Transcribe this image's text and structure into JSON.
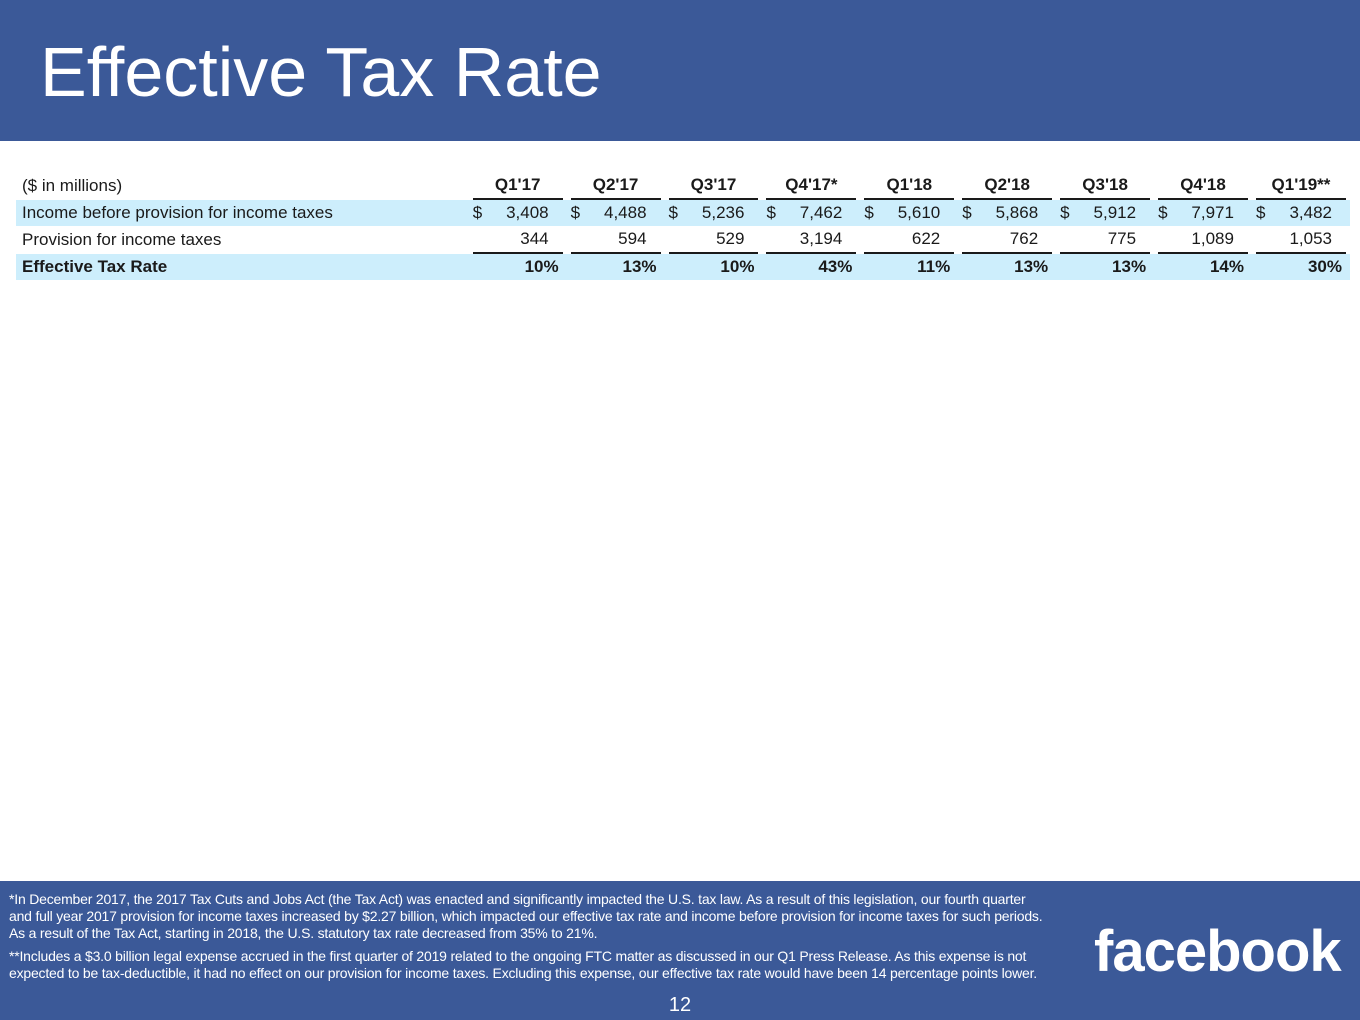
{
  "title": "Effective Tax Rate",
  "table": {
    "unit_label": "($ in millions)",
    "columns": [
      "Q1'17",
      "Q2'17",
      "Q3'17",
      "Q4'17*",
      "Q1'18",
      "Q2'18",
      "Q3'18",
      "Q4'18",
      "Q1'19**"
    ],
    "rows": [
      {
        "label": "Income before provision for income taxes",
        "currency": "$",
        "values": [
          "3,408",
          "4,488",
          "5,236",
          "7,462",
          "5,610",
          "5,868",
          "5,912",
          "7,971",
          "3,482"
        ]
      },
      {
        "label": "Provision for income taxes",
        "values": [
          "344",
          "594",
          "529",
          "3,194",
          "622",
          "762",
          "775",
          "1,089",
          "1,053"
        ]
      },
      {
        "label": "Effective Tax Rate",
        "values": [
          "10%",
          "13%",
          "10%",
          "43%",
          "11%",
          "13%",
          "13%",
          "14%",
          "30%"
        ]
      }
    ]
  },
  "footnotes": {
    "note1": "*In December 2017, the 2017 Tax Cuts and Jobs Act (the Tax Act) was enacted and significantly impacted the U.S. tax law. As a result of this legislation, our fourth quarter and full year 2017 provision for income taxes increased by $2.27 billion, which impacted our effective tax rate and income before provision for income taxes for such periods. As a result of the Tax Act, starting in 2018, the U.S. statutory tax rate decreased from 35% to 21%.",
    "note2": "**Includes a $3.0 billion legal expense accrued in the first quarter of 2019 related to the ongoing FTC matter as discussed in our Q1 Press Release. As this expense is not expected to be tax-deductible, it had no effect on our provision for income taxes. Excluding this expense, our effective tax rate would have been 14 percentage points lower."
  },
  "logo": "facebook",
  "page_number": "12",
  "colors": {
    "brand_blue": "#3b5998",
    "row_highlight": "#cdeefc"
  }
}
